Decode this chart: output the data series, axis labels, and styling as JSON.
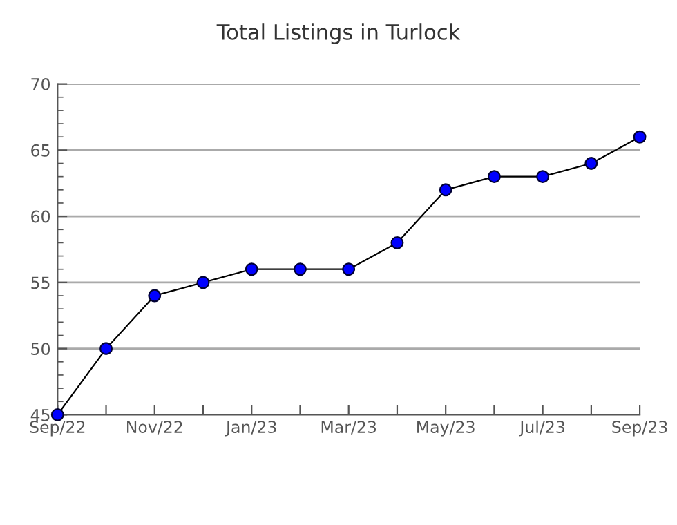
{
  "chart_data": {
    "type": "line",
    "title": "Total Listings in Turlock",
    "categories": [
      "Sep/22",
      null,
      "Nov/22",
      null,
      "Jan/23",
      null,
      "Mar/23",
      null,
      "May/23",
      null,
      "Jul/23",
      null,
      "Sep/23"
    ],
    "series": [
      {
        "color": "#0000ff",
        "values": [
          45,
          50,
          54,
          55,
          56,
          56,
          56,
          58,
          62,
          63,
          63,
          64,
          66
        ]
      }
    ],
    "ylim": [
      45,
      70
    ],
    "yticks": [
      45,
      50,
      55,
      60,
      65,
      70
    ],
    "grid": "y",
    "marker": "circle",
    "line_style": "solid"
  }
}
